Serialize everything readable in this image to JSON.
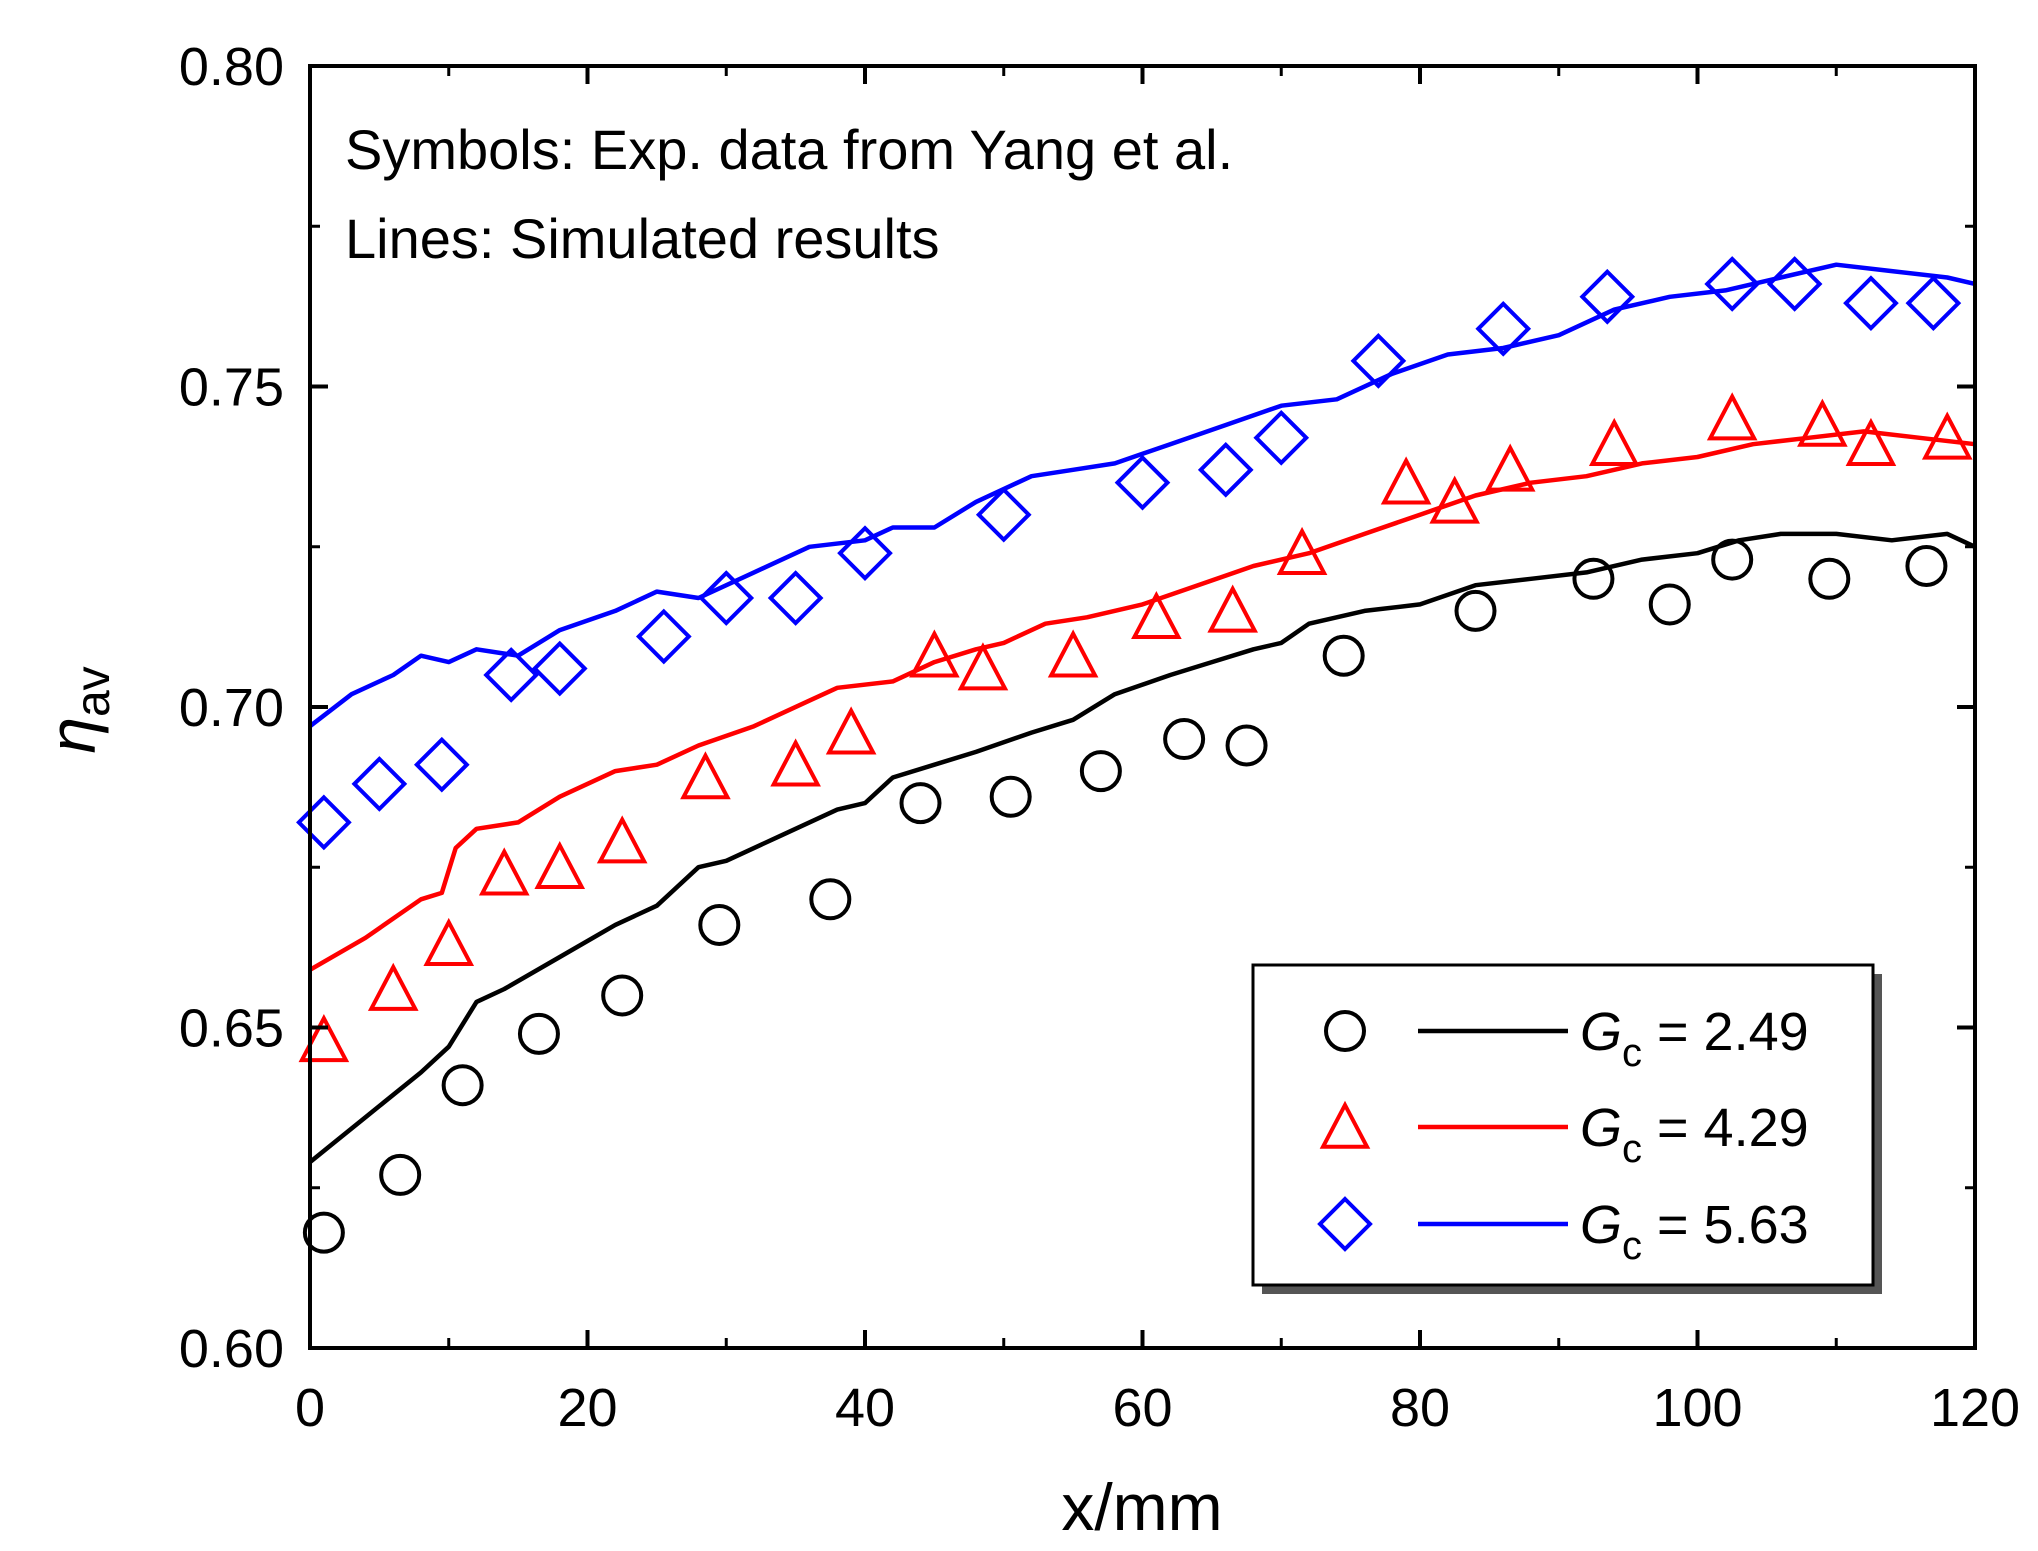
{
  "chart_data": {
    "type": "line",
    "xlabel": "x/mm",
    "ylabel": {
      "symbol": "η",
      "subscript": "av"
    },
    "xlim": [
      0,
      120
    ],
    "ylim": [
      0.6,
      0.8
    ],
    "x_ticks": [
      0,
      20,
      40,
      60,
      80,
      100,
      120
    ],
    "x_tick_labels": [
      "0",
      "20",
      "40",
      "60",
      "80",
      "100",
      "120"
    ],
    "y_ticks": [
      0.6,
      0.65,
      0.7,
      0.75,
      0.8
    ],
    "y_tick_labels": [
      "0.60",
      "0.65",
      "0.70",
      "0.75",
      "0.80"
    ],
    "annotations": [
      "Symbols: Exp. data from Yang et al.",
      "Lines: Simulated results"
    ],
    "legend_position": "bottom-right",
    "grid": false,
    "series": [
      {
        "name": "Gc = 2.49",
        "label_var": "G",
        "label_sub": "c",
        "label_value": " = 2.49",
        "color": "#000000",
        "marker": "circle",
        "exp": [
          [
            1,
            0.618
          ],
          [
            6.5,
            0.627
          ],
          [
            11,
            0.641
          ],
          [
            16.5,
            0.649
          ],
          [
            22.5,
            0.655
          ],
          [
            29.5,
            0.666
          ],
          [
            37.5,
            0.67
          ],
          [
            44,
            0.685
          ],
          [
            50.5,
            0.686
          ],
          [
            57,
            0.69
          ],
          [
            63,
            0.695
          ],
          [
            67.5,
            0.694
          ],
          [
            74.5,
            0.708
          ],
          [
            84,
            0.715
          ],
          [
            92.5,
            0.72
          ],
          [
            98,
            0.716
          ],
          [
            102.5,
            0.723
          ],
          [
            109.5,
            0.72
          ],
          [
            116.5,
            0.722
          ]
        ],
        "sim": [
          [
            0,
            0.629
          ],
          [
            4,
            0.636
          ],
          [
            8,
            0.643
          ],
          [
            10,
            0.647
          ],
          [
            12,
            0.654
          ],
          [
            14,
            0.656
          ],
          [
            18,
            0.661
          ],
          [
            22,
            0.666
          ],
          [
            25,
            0.669
          ],
          [
            28,
            0.675
          ],
          [
            30,
            0.676
          ],
          [
            34,
            0.68
          ],
          [
            38,
            0.684
          ],
          [
            40,
            0.685
          ],
          [
            42,
            0.689
          ],
          [
            45,
            0.691
          ],
          [
            48,
            0.693
          ],
          [
            52,
            0.696
          ],
          [
            55,
            0.698
          ],
          [
            58,
            0.702
          ],
          [
            62,
            0.705
          ],
          [
            65,
            0.707
          ],
          [
            68,
            0.709
          ],
          [
            70,
            0.71
          ],
          [
            72,
            0.713
          ],
          [
            76,
            0.715
          ],
          [
            80,
            0.716
          ],
          [
            84,
            0.719
          ],
          [
            88,
            0.72
          ],
          [
            92,
            0.721
          ],
          [
            96,
            0.723
          ],
          [
            100,
            0.724
          ],
          [
            103,
            0.726
          ],
          [
            106,
            0.727
          ],
          [
            110,
            0.727
          ],
          [
            114,
            0.726
          ],
          [
            118,
            0.727
          ],
          [
            120,
            0.725
          ]
        ]
      },
      {
        "name": "Gc = 4.29",
        "label_var": "G",
        "label_sub": "c",
        "label_value": " = 4.29",
        "color": "#ff0000",
        "marker": "triangle",
        "exp": [
          [
            1,
            0.648
          ],
          [
            6,
            0.656
          ],
          [
            10,
            0.663
          ],
          [
            14,
            0.674
          ],
          [
            18,
            0.675
          ],
          [
            22.5,
            0.679
          ],
          [
            28.5,
            0.689
          ],
          [
            35,
            0.691
          ],
          [
            39,
            0.696
          ],
          [
            45,
            0.708
          ],
          [
            48.5,
            0.706
          ],
          [
            55,
            0.708
          ],
          [
            61,
            0.714
          ],
          [
            66.5,
            0.715
          ],
          [
            71.5,
            0.724
          ],
          [
            79,
            0.735
          ],
          [
            82.5,
            0.732
          ],
          [
            86.5,
            0.737
          ],
          [
            94,
            0.741
          ],
          [
            102.5,
            0.745
          ],
          [
            109,
            0.744
          ],
          [
            112.5,
            0.741
          ],
          [
            118,
            0.742
          ]
        ],
        "sim": [
          [
            0,
            0.659
          ],
          [
            4,
            0.664
          ],
          [
            8,
            0.67
          ],
          [
            9.5,
            0.671
          ],
          [
            10.5,
            0.678
          ],
          [
            12,
            0.681
          ],
          [
            15,
            0.682
          ],
          [
            18,
            0.686
          ],
          [
            22,
            0.69
          ],
          [
            25,
            0.691
          ],
          [
            28,
            0.694
          ],
          [
            32,
            0.697
          ],
          [
            36,
            0.701
          ],
          [
            38,
            0.703
          ],
          [
            42,
            0.704
          ],
          [
            45,
            0.707
          ],
          [
            48,
            0.709
          ],
          [
            50,
            0.71
          ],
          [
            53,
            0.713
          ],
          [
            56,
            0.714
          ],
          [
            60,
            0.716
          ],
          [
            64,
            0.719
          ],
          [
            68,
            0.722
          ],
          [
            72,
            0.724
          ],
          [
            76,
            0.727
          ],
          [
            80,
            0.73
          ],
          [
            84,
            0.733
          ],
          [
            88,
            0.735
          ],
          [
            92,
            0.736
          ],
          [
            96,
            0.738
          ],
          [
            100,
            0.739
          ],
          [
            104,
            0.741
          ],
          [
            108,
            0.742
          ],
          [
            112,
            0.743
          ],
          [
            116,
            0.742
          ],
          [
            120,
            0.741
          ]
        ]
      },
      {
        "name": "Gc = 5.63",
        "label_var": "G",
        "label_sub": "c",
        "label_value": " = 5.63",
        "color": "#0000ff",
        "marker": "diamond",
        "exp": [
          [
            1,
            0.682
          ],
          [
            5,
            0.688
          ],
          [
            9.5,
            0.691
          ],
          [
            14.5,
            0.705
          ],
          [
            18,
            0.706
          ],
          [
            25.5,
            0.711
          ],
          [
            30,
            0.717
          ],
          [
            35,
            0.717
          ],
          [
            40,
            0.724
          ],
          [
            50,
            0.73
          ],
          [
            60,
            0.735
          ],
          [
            66,
            0.737
          ],
          [
            70,
            0.742
          ],
          [
            77,
            0.754
          ],
          [
            86,
            0.759
          ],
          [
            93.5,
            0.764
          ],
          [
            102.5,
            0.766
          ],
          [
            107,
            0.766
          ],
          [
            112.5,
            0.763
          ],
          [
            117,
            0.763
          ]
        ],
        "sim": [
          [
            0,
            0.697
          ],
          [
            3,
            0.702
          ],
          [
            6,
            0.705
          ],
          [
            8,
            0.708
          ],
          [
            10,
            0.707
          ],
          [
            12,
            0.709
          ],
          [
            15,
            0.708
          ],
          [
            18,
            0.712
          ],
          [
            22,
            0.715
          ],
          [
            25,
            0.718
          ],
          [
            28,
            0.717
          ],
          [
            32,
            0.721
          ],
          [
            36,
            0.725
          ],
          [
            40,
            0.726
          ],
          [
            42,
            0.728
          ],
          [
            45,
            0.728
          ],
          [
            48,
            0.732
          ],
          [
            52,
            0.736
          ],
          [
            55,
            0.737
          ],
          [
            58,
            0.738
          ],
          [
            62,
            0.741
          ],
          [
            66,
            0.744
          ],
          [
            70,
            0.747
          ],
          [
            74,
            0.748
          ],
          [
            78,
            0.752
          ],
          [
            82,
            0.755
          ],
          [
            86,
            0.756
          ],
          [
            90,
            0.758
          ],
          [
            94,
            0.762
          ],
          [
            98,
            0.764
          ],
          [
            102,
            0.765
          ],
          [
            106,
            0.767
          ],
          [
            110,
            0.769
          ],
          [
            114,
            0.768
          ],
          [
            118,
            0.767
          ],
          [
            120,
            0.766
          ]
        ]
      }
    ]
  }
}
